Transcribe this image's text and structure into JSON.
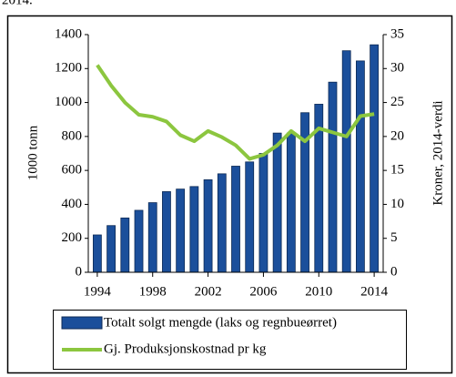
{
  "top_fragment": "2014.",
  "chart_data": {
    "type": "bar-line",
    "y_label": "1000 tonn",
    "y2_label": "Kroner, 2014-verdi",
    "x": [
      1994,
      1995,
      1996,
      1997,
      1998,
      1999,
      2000,
      2001,
      2002,
      2003,
      2004,
      2005,
      2006,
      2007,
      2008,
      2009,
      2010,
      2011,
      2012,
      2013,
      2014
    ],
    "xlim": [
      1993.35,
      2014.65
    ],
    "xticks": [
      1994,
      1998,
      2002,
      2006,
      2010,
      2014
    ],
    "ylim": [
      0,
      1400
    ],
    "yticks": [
      0,
      200,
      400,
      600,
      800,
      1000,
      1200,
      1400
    ],
    "y2lim": [
      0,
      35
    ],
    "y2ticks": [
      0,
      5,
      10,
      15,
      20,
      25,
      30,
      35
    ],
    "series": [
      {
        "name": "Totalt solgt mengde (laks og regnbueørret)",
        "type": "bar",
        "color": "#1b4f9b",
        "values": [
          220,
          275,
          320,
          365,
          410,
          475,
          490,
          505,
          545,
          580,
          625,
          650,
          700,
          820,
          820,
          940,
          990,
          1120,
          1305,
          1245,
          1340
        ]
      },
      {
        "name": "Gj. Produksjonskostnad pr kg",
        "type": "line",
        "axis": "y2",
        "color": "#8cc63f",
        "values": [
          30.5,
          27.5,
          25,
          23.2,
          22.9,
          22.2,
          20.2,
          19.3,
          20.8,
          19.9,
          18.7,
          16.7,
          17.3,
          18.7,
          20.8,
          19.3,
          21.2,
          20.6,
          20.0,
          23.0,
          23.3
        ]
      }
    ]
  }
}
